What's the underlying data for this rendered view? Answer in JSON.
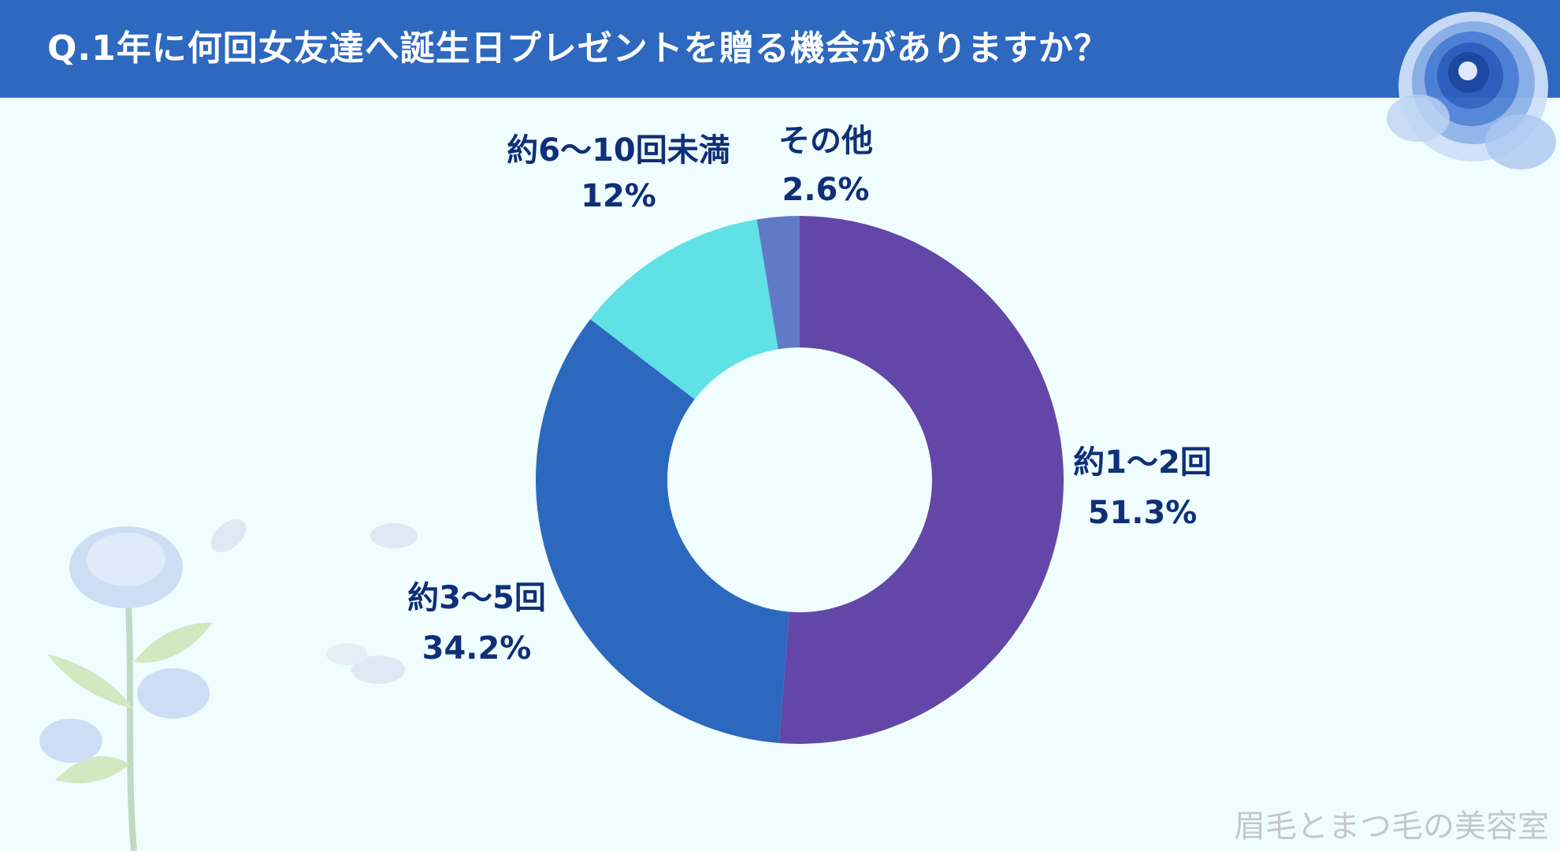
{
  "title": "Q.1年に何回女友達へ誕生日プレゼントを贈る機会がありますか？",
  "watermark": "眉毛とまつ毛の美容室",
  "chart_data": {
    "type": "pie",
    "donut": true,
    "start": "12 o'clock, clockwise",
    "slices": [
      {
        "label": "約1～2回",
        "value": 51.3,
        "value_label": "51.3%",
        "color": "#6247a8"
      },
      {
        "label": "約3～5回",
        "value": 34.2,
        "value_label": "34.2%",
        "color": "#2d68bf"
      },
      {
        "label": "約6～10回未満",
        "value": 12,
        "value_label": "12%",
        "color": "#5fe1e6"
      },
      {
        "label": "その他",
        "value": 2.6,
        "value_label": "2.6%",
        "color": "#5f7bc6"
      }
    ]
  },
  "colors": {
    "header": "#2e68bf",
    "background": "#f0fdff",
    "label": "#0f2f78"
  }
}
